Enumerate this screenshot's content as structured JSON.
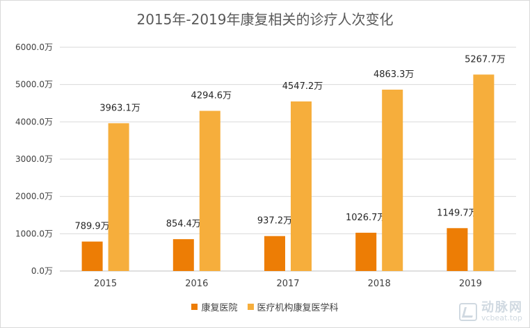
{
  "chart_data": {
    "type": "bar",
    "title": "2015年-2019年康复相关的诊疗人次变化",
    "categories": [
      "2015",
      "2016",
      "2017",
      "2018",
      "2019"
    ],
    "series": [
      {
        "name": "康复医院",
        "color": "#ED7D05",
        "values": [
          789.9,
          854.4,
          937.2,
          1026.7,
          1149.7
        ],
        "labels": [
          "789.9万",
          "854.4万",
          "937.2万",
          "1026.7万",
          "1149.7万"
        ]
      },
      {
        "name": "医疗机构康复医学科",
        "color": "#F6AE3C",
        "values": [
          3963.1,
          4294.6,
          4547.2,
          4863.3,
          5267.7
        ],
        "labels": [
          "3963.1万",
          "4294.6万",
          "4547.2万",
          "4863.3万",
          "5267.7万"
        ]
      }
    ],
    "ylim": [
      0,
      6000
    ],
    "yticks": [
      0,
      1000,
      2000,
      3000,
      4000,
      5000,
      6000
    ],
    "ytick_labels": [
      "0.0万",
      "1000.0万",
      "2000.0万",
      "3000.0万",
      "4000.0万",
      "5000.0万",
      "6000.0万"
    ],
    "grid": true,
    "legend_position": "bottom"
  },
  "watermark": {
    "name": "动脉网",
    "url": "vcbeat.top",
    "color": "#C8D3DC"
  }
}
